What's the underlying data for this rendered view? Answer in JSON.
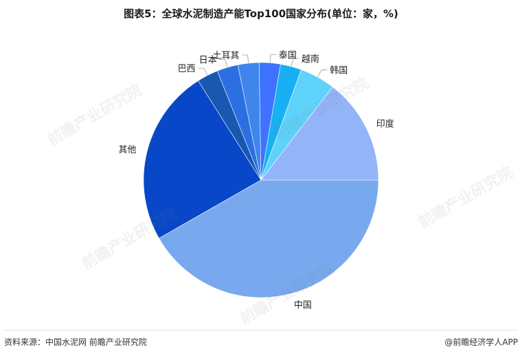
{
  "title": "图表5：全球水泥制造产能Top100国家分布(单位：家，%)",
  "source": "资料来源：中国水泥网 前瞻产业研究院",
  "credit": "@前瞻经济学人APP",
  "watermark": "前瞻产业研究院",
  "chart_data": {
    "type": "pie",
    "title": "图表5：全球水泥制造产能Top100国家分布(单位：家，%)",
    "start_angle_deg": 0,
    "direction": "clockwise",
    "slices": [
      {
        "label": "中国",
        "value": 43,
        "color": "#78A9EE"
      },
      {
        "label": "其他",
        "value": 25,
        "color": "#0848C8"
      },
      {
        "label": "巴西",
        "value": 3,
        "color": "#1858B0"
      },
      {
        "label": "日本",
        "value": 3,
        "color": "#2A70E2"
      },
      {
        "label": "土耳其",
        "value": 3,
        "color": "#3F86EC"
      },
      {
        "label": "泰国",
        "value": 3,
        "color": "#3D73FF"
      },
      {
        "label": "越南",
        "value": 3,
        "color": "#17B0F2"
      },
      {
        "label": "韩国",
        "value": 5,
        "color": "#5FD2FB"
      },
      {
        "label": "印度",
        "value": 15,
        "color": "#94B4FA"
      }
    ]
  }
}
